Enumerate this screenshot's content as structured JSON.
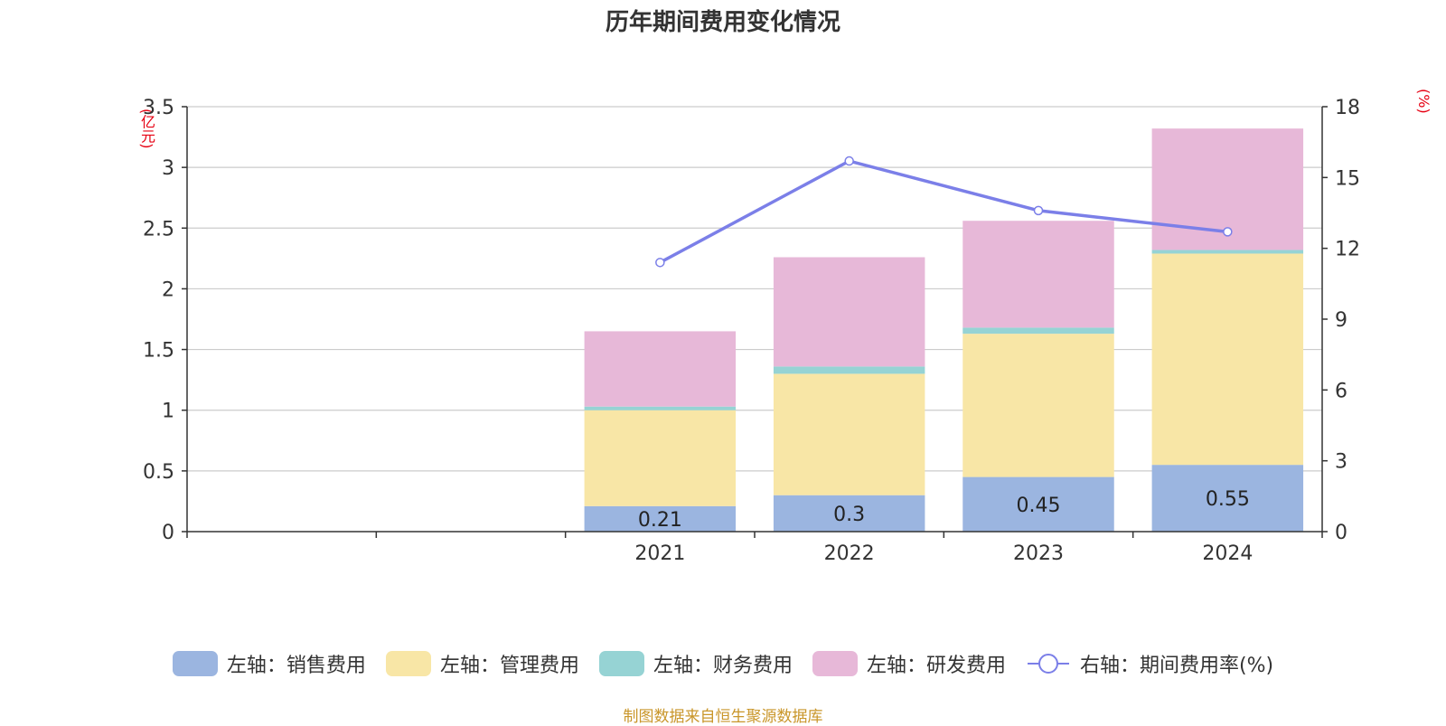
{
  "chart_data": {
    "type": "bar",
    "title": "历年期间费用变化情况",
    "categories": [
      "",
      "",
      "2021",
      "2022",
      "2023",
      "2024"
    ],
    "left_axis": {
      "unit": "(亿元)",
      "ylim": [
        0,
        3.5
      ],
      "ticks": [
        "0",
        "0.5",
        "1",
        "1.5",
        "2",
        "2.5",
        "3",
        "3.5"
      ]
    },
    "right_axis": {
      "unit": "(%)",
      "ylim": [
        0,
        18
      ],
      "ticks": [
        "0",
        "3",
        "6",
        "9",
        "12",
        "15",
        "18"
      ]
    },
    "grid": true,
    "legend_position": "bottom",
    "series": [
      {
        "name": "左轴：销售费用",
        "axis": "left",
        "color": "#9bb5e0",
        "values": [
          null,
          null,
          0.21,
          0.3,
          0.45,
          0.55
        ],
        "labels": [
          "",
          "",
          "0.21",
          "0.3",
          "0.45",
          "0.55"
        ]
      },
      {
        "name": "左轴：管理费用",
        "axis": "left",
        "color": "#f8e6a6",
        "values": [
          null,
          null,
          0.79,
          1.0,
          1.18,
          1.74
        ]
      },
      {
        "name": "左轴：财务费用",
        "axis": "left",
        "color": "#96d3d4",
        "values": [
          null,
          null,
          0.03,
          0.06,
          0.05,
          0.03
        ]
      },
      {
        "name": "左轴：研发费用",
        "axis": "left",
        "color": "#e7b8d8",
        "values": [
          null,
          null,
          0.62,
          0.9,
          0.88,
          1.0
        ]
      },
      {
        "name": "右轴：期间费用率(%)",
        "axis": "right",
        "type": "line",
        "color": "#7b7fe8",
        "values": [
          null,
          null,
          11.4,
          15.7,
          13.6,
          12.7
        ]
      }
    ],
    "source": "制图数据来自恒生聚源数据库"
  }
}
